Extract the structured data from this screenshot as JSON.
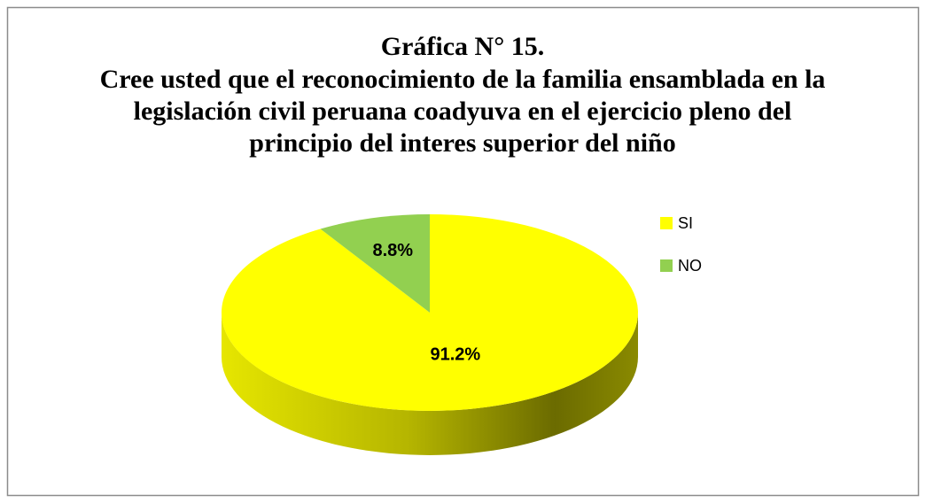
{
  "chart_data": {
    "type": "pie",
    "title": "Gráfica N° 15.",
    "subtitle": "Cree usted que el reconocimiento de la familia ensamblada en la legislación civil peruana coadyuva en el ejercicio pleno del principio del interes superior del niño",
    "categories": [
      "SI",
      "NO"
    ],
    "values": [
      91.2,
      8.8
    ],
    "value_labels": [
      "91.2%",
      "8.8%"
    ],
    "colors": [
      "#ffff00",
      "#92d050"
    ],
    "legend": "right"
  }
}
